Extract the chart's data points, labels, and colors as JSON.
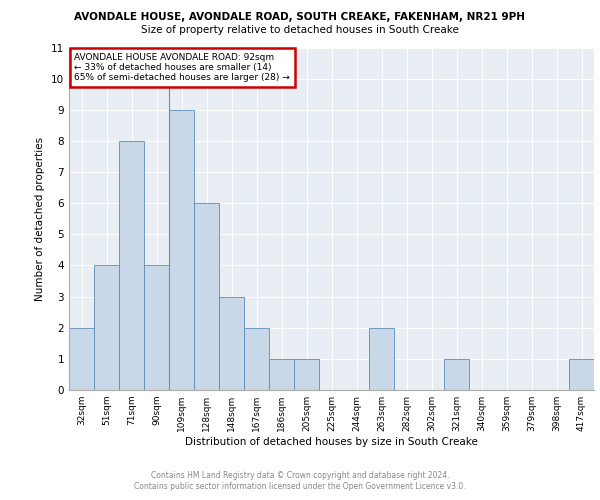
{
  "title1": "AVONDALE HOUSE, AVONDALE ROAD, SOUTH CREAKE, FAKENHAM, NR21 9PH",
  "title2": "Size of property relative to detached houses in South Creake",
  "xlabel": "Distribution of detached houses by size in South Creake",
  "ylabel": "Number of detached properties",
  "categories": [
    "32sqm",
    "51sqm",
    "71sqm",
    "90sqm",
    "109sqm",
    "128sqm",
    "148sqm",
    "167sqm",
    "186sqm",
    "205sqm",
    "225sqm",
    "244sqm",
    "263sqm",
    "282sqm",
    "302sqm",
    "321sqm",
    "340sqm",
    "359sqm",
    "379sqm",
    "398sqm",
    "417sqm"
  ],
  "values": [
    2,
    4,
    8,
    4,
    9,
    6,
    3,
    2,
    1,
    1,
    0,
    0,
    2,
    0,
    0,
    1,
    0,
    0,
    0,
    0,
    1
  ],
  "bar_color": "#c8d8e8",
  "bar_edge_color": "#5b8db8",
  "background_color": "#e8eef4",
  "annotation_line1": "AVONDALE HOUSE AVONDALE ROAD: 92sqm",
  "annotation_line2": "← 33% of detached houses are smaller (14)",
  "annotation_line3": "65% of semi-detached houses are larger (28) →",
  "annotation_box_color": "#ffffff",
  "annotation_border_color": "#cc0000",
  "ylim": [
    0,
    11
  ],
  "yticks": [
    0,
    1,
    2,
    3,
    4,
    5,
    6,
    7,
    8,
    9,
    10,
    11
  ],
  "footer_line1": "Contains HM Land Registry data © Crown copyright and database right 2024.",
  "footer_line2": "Contains public sector information licensed under the Open Government Licence v3.0."
}
